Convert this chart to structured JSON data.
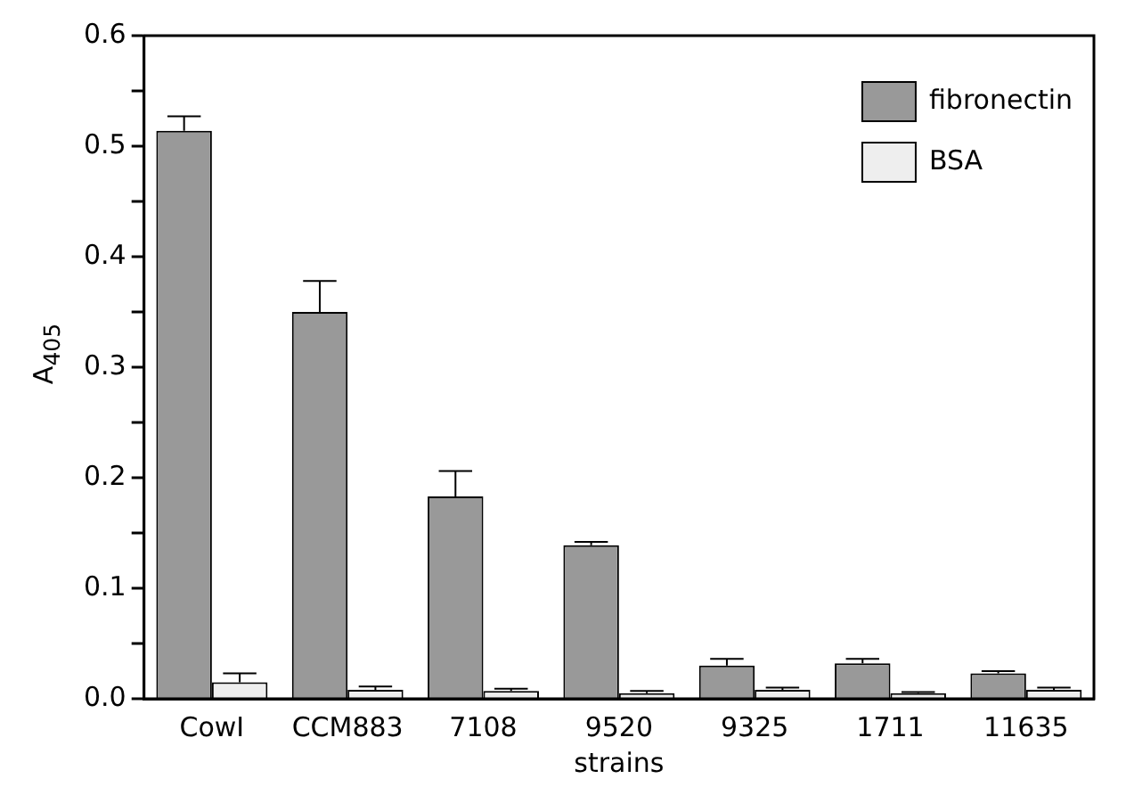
{
  "chart_data": {
    "type": "bar",
    "xlabel": "strains",
    "ylabel": "A$_{405}$",
    "categories": [
      "CowI",
      "CCM883",
      "7108",
      "9520",
      "9325",
      "1711",
      "11635"
    ],
    "series": [
      {
        "name": "fibronectin",
        "color": "#999999",
        "values": [
          0.514,
          0.35,
          0.183,
          0.139,
          0.03,
          0.032,
          0.023
        ],
        "errors": [
          0.013,
          0.028,
          0.023,
          0.003,
          0.006,
          0.004,
          0.002
        ]
      },
      {
        "name": "BSA",
        "color": "#eeeeee",
        "values": [
          0.015,
          0.008,
          0.007,
          0.005,
          0.008,
          0.005,
          0.008
        ],
        "errors": [
          0.008,
          0.003,
          0.002,
          0.002,
          0.002,
          0.001,
          0.002
        ]
      }
    ],
    "ylim": [
      0,
      0.6
    ],
    "yticks": [
      {
        "value": 0,
        "label": "0.0"
      },
      {
        "value": 0.05,
        "label": null
      },
      0.1,
      {
        "value": 0.15,
        "label": null
      },
      0.2,
      {
        "value": 0.25,
        "label": null
      },
      0.3,
      {
        "value": 0.35,
        "label": null
      },
      0.4,
      {
        "value": 0.45,
        "label": null
      },
      0.5,
      {
        "value": 0.55,
        "label": null
      },
      0.6
    ],
    "grid": false,
    "legend": "top right"
  }
}
